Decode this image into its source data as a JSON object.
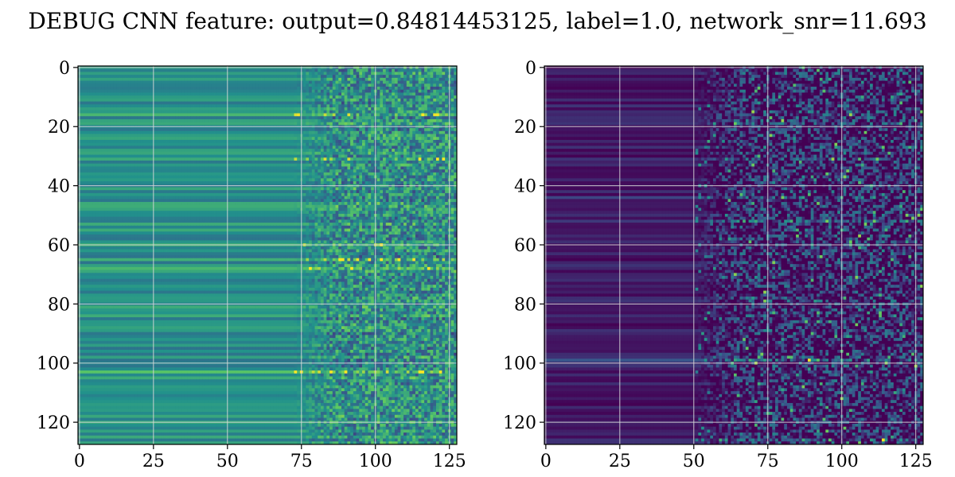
{
  "figure": {
    "title": "DEBUG CNN feature: output=0.84814453125, label=1.0, network_snr=11.693"
  },
  "chart_data": [
    {
      "type": "heatmap",
      "title": "",
      "xlabel": "",
      "ylabel": "",
      "rows": 128,
      "cols": 128,
      "xlim": [
        -0.5,
        127.5
      ],
      "ylim": [
        127.5,
        -0.5
      ],
      "x_ticks": [
        0,
        25,
        50,
        75,
        100,
        125
      ],
      "y_ticks": [
        0,
        20,
        40,
        60,
        80,
        100,
        120
      ],
      "grid": true,
      "colormap": "viridis",
      "colors": [
        "#440154",
        "#3b528b",
        "#21918c",
        "#5ec962",
        "#fde725"
      ],
      "pattern": {
        "base_level": 0.5,
        "noise_onset_col": 72,
        "noise_strength": 0.25,
        "row_stripe_strength": 0.12,
        "bright_rows": [
          16,
          31,
          60,
          65,
          68,
          103
        ]
      }
    },
    {
      "type": "heatmap",
      "title": "",
      "xlabel": "",
      "ylabel": "",
      "rows": 128,
      "cols": 128,
      "xlim": [
        -0.5,
        127.5
      ],
      "ylim": [
        127.5,
        -0.5
      ],
      "x_ticks": [
        0,
        25,
        50,
        75,
        100,
        125
      ],
      "y_ticks": [
        0,
        20,
        40,
        60,
        80,
        100,
        120
      ],
      "grid": true,
      "colormap": "viridis",
      "colors": [
        "#440154",
        "#3b528b",
        "#21918c",
        "#5ec962",
        "#fde725"
      ],
      "pattern": {
        "base_level": 0.08,
        "noise_onset_col": 50,
        "noise_strength": 0.35,
        "row_stripe_strength": 0.08,
        "bright_rows": [
          27,
          44,
          52,
          99,
          126
        ]
      }
    }
  ]
}
